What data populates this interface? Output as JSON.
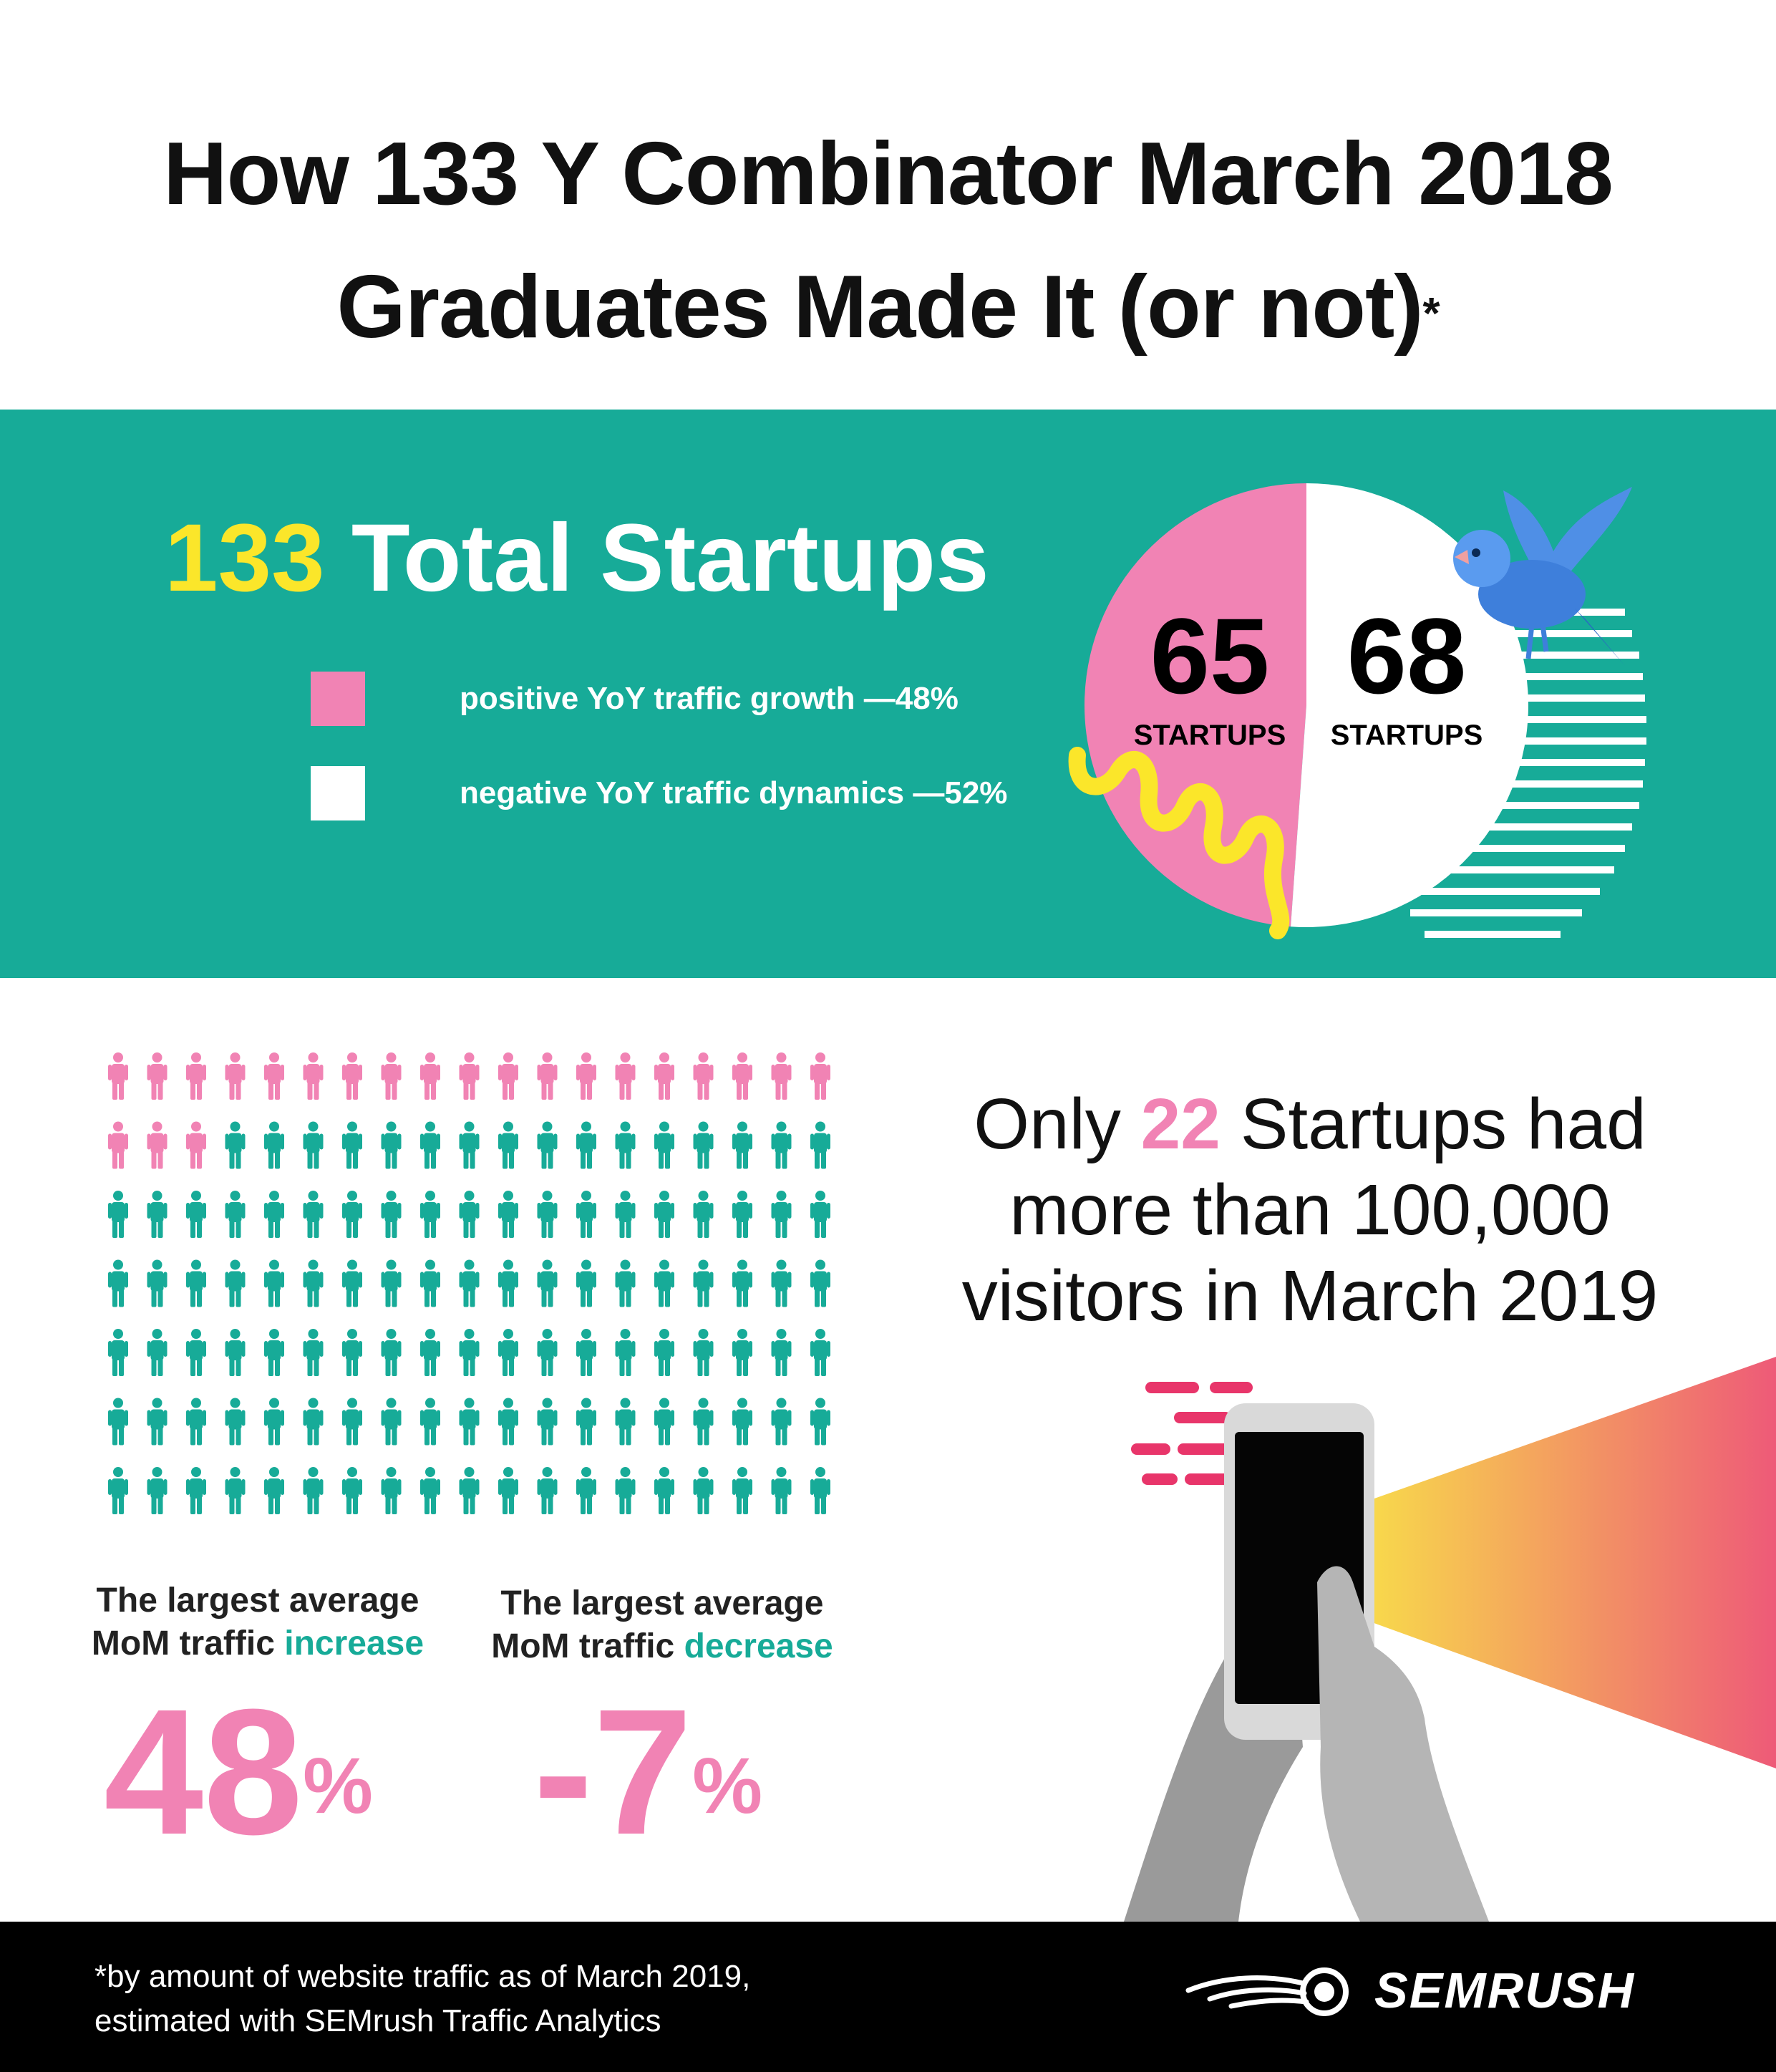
{
  "header": {
    "title_line1": "How 133 Y Combinator March 2018",
    "title_line2": "Graduates Made It (or not)",
    "title_mark": "*"
  },
  "summary": {
    "total_number": "133",
    "total_label": "Total Startups",
    "legend": [
      {
        "label": "positive YoY traffic growth —48%",
        "color": "#f183b4"
      },
      {
        "label": "negative YoY traffic dynamics —52%",
        "color": "#ffffff"
      }
    ]
  },
  "chart_data": [
    {
      "type": "pie",
      "slices": [
        {
          "label": "STARTUPS",
          "value": 65,
          "display": "65",
          "color": "#f183b4"
        },
        {
          "label": "STARTUPS",
          "value": 68,
          "display": "68",
          "color": "#ffffff"
        }
      ]
    },
    {
      "type": "pictogram",
      "total": 133,
      "highlighted": 22,
      "per_row": 19,
      "colors": {
        "highlighted": "#f183b4",
        "rest": "#17ab98"
      }
    }
  ],
  "callout": {
    "pre": "Only ",
    "number": "22",
    "post": " Startups had",
    "line2": "more than 100,000",
    "line3": "visitors in March 2019"
  },
  "stats": {
    "increase": {
      "label_line1": "The largest average",
      "label_pre": "MoM traffic ",
      "label_word": "increase",
      "value": "48",
      "unit": "%"
    },
    "decrease": {
      "label_line1": "The largest average",
      "label_pre": "MoM traffic ",
      "label_word": "decrease",
      "value": "-7",
      "unit": "%"
    }
  },
  "footer": {
    "footnote_line1": "*by amount of website traffic as of March 2019,",
    "footnote_line2": "estimated with SEMrush Traffic Analytics",
    "brand": "SEMRUSH"
  },
  "colors": {
    "teal": "#17ab98",
    "pink": "#f183b4",
    "yellow": "#fbe62a",
    "black": "#000000"
  },
  "icons": [
    "bird-icon",
    "person-icon",
    "phone-illustration",
    "semrush-logo-icon"
  ]
}
